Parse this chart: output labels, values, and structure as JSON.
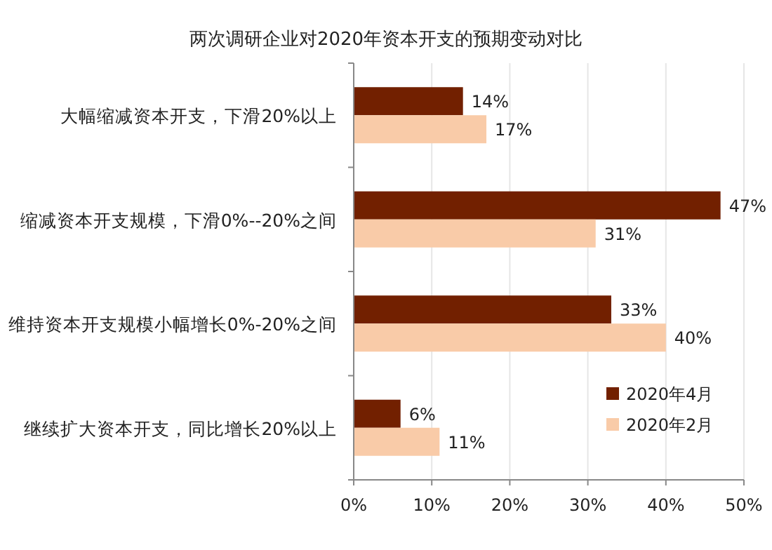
{
  "chart_data": {
    "type": "bar",
    "orientation": "horizontal",
    "title": "两次调研企业对2020年资本开支的预期变动对比",
    "categories": [
      "大幅缩减资本开支，下滑20%以上",
      "缩减资本开支规模，下滑0%--20%之间",
      "维持资本开支规模小幅增长0%-20%之间",
      "继续扩大资本开支，同比增长20%以上"
    ],
    "series": [
      {
        "name": "2020年4月",
        "color": "#722000",
        "values": [
          14,
          47,
          33,
          6
        ],
        "value_labels": [
          "14%",
          "47%",
          "33%",
          "6%"
        ]
      },
      {
        "name": "2020年2月",
        "color": "#f9cba8",
        "values": [
          17,
          31,
          40,
          11
        ],
        "value_labels": [
          "17%",
          "31%",
          "40%",
          "11%"
        ]
      }
    ],
    "xlim": [
      0,
      50
    ],
    "xticks": [
      {
        "value": 0,
        "label": "0%"
      },
      {
        "value": 10,
        "label": "10%"
      },
      {
        "value": 20,
        "label": "20%"
      },
      {
        "value": 30,
        "label": "30%"
      },
      {
        "value": 40,
        "label": "40%"
      },
      {
        "value": 50,
        "label": "50%"
      }
    ],
    "grid": "x",
    "legend": "bottom right"
  }
}
